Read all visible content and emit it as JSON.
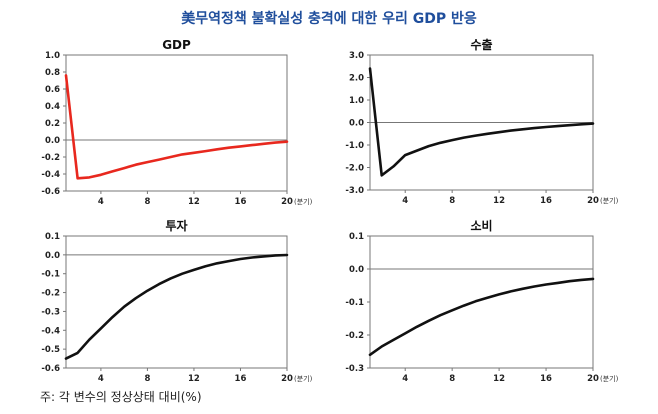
{
  "title": "美무역정책 불확실성 충격에 대한 우리 GDP 반응",
  "footnote": "주: 각 변수의 정상상태 대비(%)",
  "colors": {
    "title": "#1f4e9c",
    "gdp_line": "#e8281e",
    "other_line": "#111111"
  },
  "chart_data": [
    {
      "type": "line",
      "title": "GDP",
      "xlabel": "(분기)",
      "x_ticks": [
        "4",
        "8",
        "12",
        "16",
        "20"
      ],
      "xlim": [
        1,
        20
      ],
      "ylim": [
        -0.6,
        1.0
      ],
      "y_ticks": [
        "1.0",
        "0.8",
        "0.6",
        "0.4",
        "0.2",
        "0.0",
        "-0.2",
        "-0.4",
        "-0.6"
      ],
      "x": [
        1,
        2,
        3,
        4,
        5,
        6,
        7,
        8,
        9,
        10,
        11,
        12,
        13,
        14,
        15,
        16,
        17,
        18,
        19,
        20
      ],
      "series": [
        {
          "values": [
            0.76,
            -0.45,
            -0.44,
            -0.41,
            -0.37,
            -0.33,
            -0.29,
            -0.26,
            -0.23,
            -0.2,
            -0.17,
            -0.15,
            -0.13,
            -0.11,
            -0.09,
            -0.075,
            -0.06,
            -0.045,
            -0.03,
            -0.02
          ]
        }
      ],
      "color": "#e8281e"
    },
    {
      "type": "line",
      "title": "수출",
      "xlabel": "(분기)",
      "x_ticks": [
        "4",
        "8",
        "12",
        "16",
        "20"
      ],
      "xlim": [
        1,
        20
      ],
      "ylim": [
        -3.0,
        3.0
      ],
      "y_ticks": [
        "3.0",
        "2.0",
        "1.0",
        "0.0",
        "-1.0",
        "-2.0",
        "-3.0"
      ],
      "x": [
        1,
        2,
        3,
        4,
        5,
        6,
        7,
        8,
        9,
        10,
        11,
        12,
        13,
        14,
        15,
        16,
        17,
        18,
        19,
        20
      ],
      "series": [
        {
          "values": [
            2.4,
            -2.35,
            -1.95,
            -1.45,
            -1.25,
            -1.05,
            -0.9,
            -0.78,
            -0.67,
            -0.58,
            -0.5,
            -0.43,
            -0.36,
            -0.3,
            -0.25,
            -0.2,
            -0.16,
            -0.12,
            -0.08,
            -0.05
          ]
        }
      ],
      "color": "#111111"
    },
    {
      "type": "line",
      "title": "투자",
      "xlabel": "(분기)",
      "x_ticks": [
        "4",
        "8",
        "12",
        "16",
        "20"
      ],
      "xlim": [
        1,
        20
      ],
      "ylim": [
        -0.6,
        0.1
      ],
      "y_ticks": [
        "0.1",
        "0.0",
        "-0.1",
        "-0.2",
        "-0.3",
        "-0.4",
        "-0.5",
        "-0.6"
      ],
      "x": [
        1,
        2,
        3,
        4,
        5,
        6,
        7,
        8,
        9,
        10,
        11,
        12,
        13,
        14,
        15,
        16,
        17,
        18,
        19,
        20
      ],
      "series": [
        {
          "values": [
            -0.55,
            -0.52,
            -0.45,
            -0.39,
            -0.33,
            -0.275,
            -0.23,
            -0.19,
            -0.155,
            -0.125,
            -0.1,
            -0.08,
            -0.06,
            -0.045,
            -0.033,
            -0.022,
            -0.014,
            -0.008,
            -0.003,
            -0.001
          ]
        }
      ],
      "color": "#111111"
    },
    {
      "type": "line",
      "title": "소비",
      "xlabel": "(분기)",
      "x_ticks": [
        "4",
        "8",
        "12",
        "16",
        "20"
      ],
      "xlim": [
        1,
        20
      ],
      "ylim": [
        -0.3,
        0.1
      ],
      "y_ticks": [
        "0.1",
        "0.0",
        "-0.1",
        "-0.2",
        "-0.3"
      ],
      "x": [
        1,
        2,
        3,
        4,
        5,
        6,
        7,
        8,
        9,
        10,
        11,
        12,
        13,
        14,
        15,
        16,
        17,
        18,
        19,
        20
      ],
      "series": [
        {
          "values": [
            -0.26,
            -0.235,
            -0.215,
            -0.195,
            -0.175,
            -0.157,
            -0.14,
            -0.125,
            -0.111,
            -0.098,
            -0.087,
            -0.077,
            -0.068,
            -0.06,
            -0.053,
            -0.047,
            -0.042,
            -0.037,
            -0.033,
            -0.03
          ]
        }
      ],
      "color": "#111111"
    }
  ]
}
